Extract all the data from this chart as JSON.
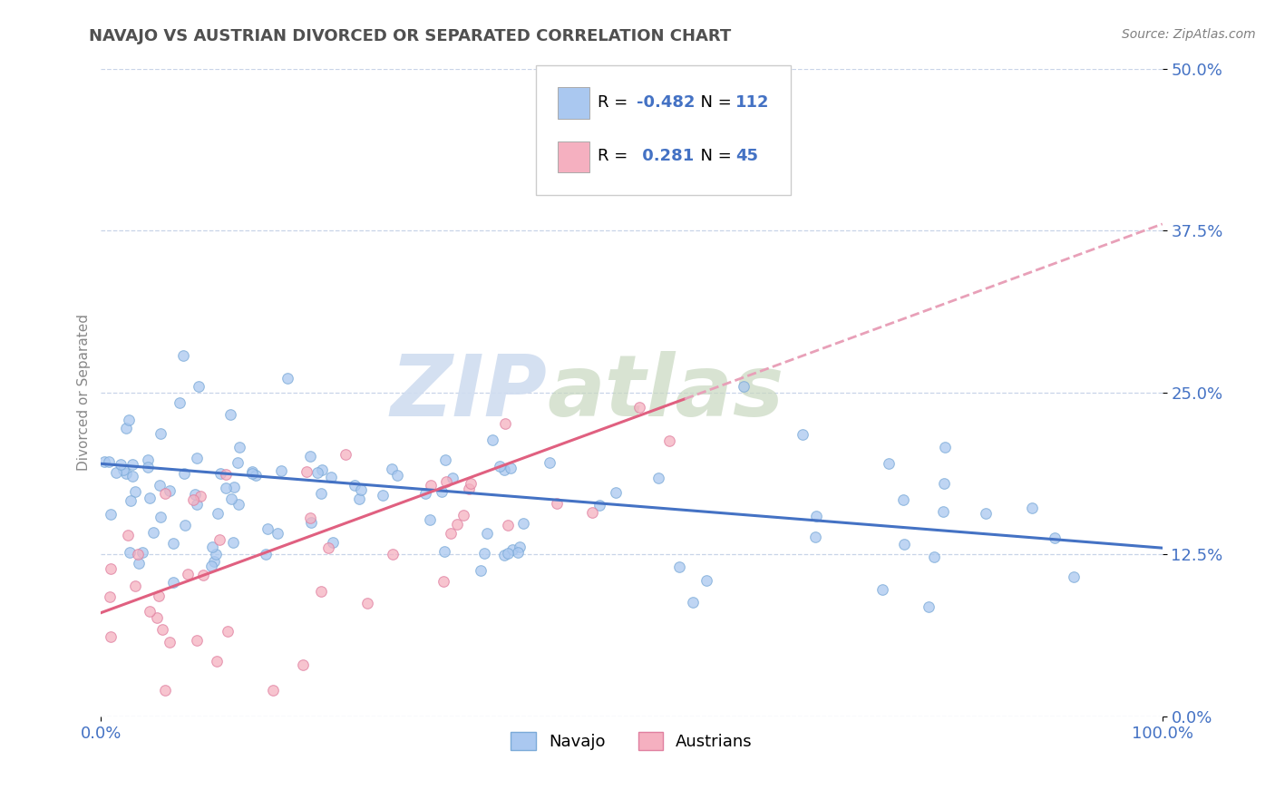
{
  "title": "NAVAJO VS AUSTRIAN DIVORCED OR SEPARATED CORRELATION CHART",
  "source_text": "Source: ZipAtlas.com",
  "ylabel": "Divorced or Separated",
  "navajo_R": -0.482,
  "navajo_N": 112,
  "austrian_R": 0.281,
  "austrian_N": 45,
  "navajo_scatter_color": "#aac8f0",
  "navajo_scatter_edge": "#7baad8",
  "austrian_scatter_color": "#f5b0c0",
  "austrian_scatter_edge": "#e080a0",
  "navajo_trend_color": "#4472c4",
  "austrian_trend_color": "#e06080",
  "austrian_trend_dash_color": "#e8a0b8",
  "grid_color": "#c8d4e8",
  "title_color": "#505050",
  "axis_tick_color": "#4472c4",
  "watermark_zip_color": "#d0ddf0",
  "watermark_atlas_color": "#c8d8c0",
  "bg_color": "#ffffff",
  "source_color": "#808080",
  "legend_color": "#4472c4",
  "x_min": 0.0,
  "x_max": 1.0,
  "y_min": 0.0,
  "y_max": 0.5,
  "yticks": [
    0.0,
    0.125,
    0.25,
    0.375,
    0.5
  ],
  "ytick_labels": [
    "0.0%",
    "12.5%",
    "25.0%",
    "37.5%",
    "50.0%"
  ],
  "xtick_labels": [
    "0.0%",
    "100.0%"
  ],
  "nav_trend_x0": 0.0,
  "nav_trend_y0": 0.195,
  "nav_trend_x1": 1.0,
  "nav_trend_y1": 0.13,
  "aust_trend_x0": 0.0,
  "aust_trend_y0": 0.08,
  "aust_trend_x1": 1.0,
  "aust_trend_y1": 0.38
}
